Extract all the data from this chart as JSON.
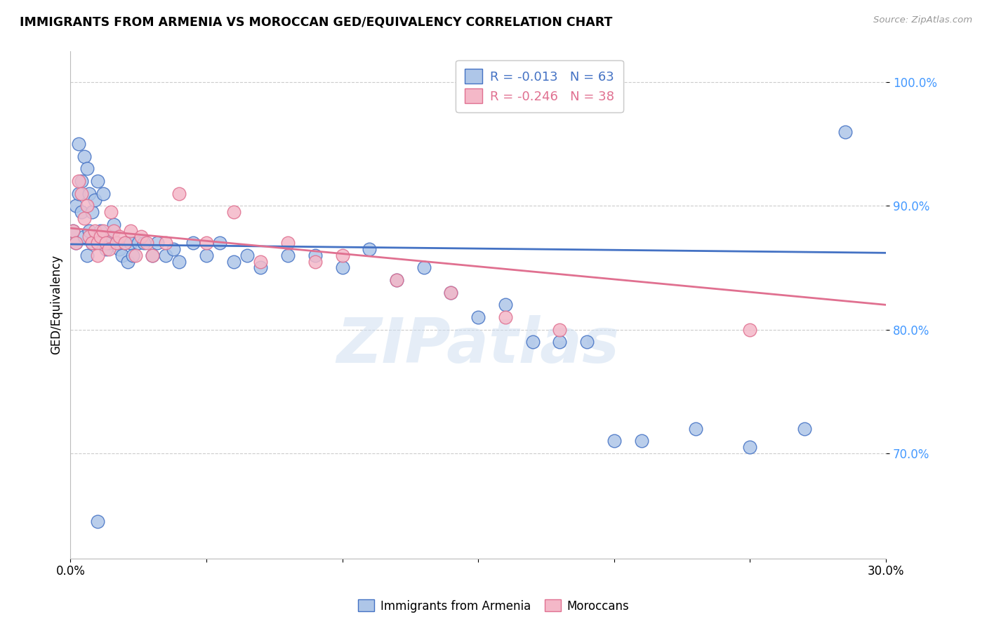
{
  "title": "IMMIGRANTS FROM ARMENIA VS MOROCCAN GED/EQUIVALENCY CORRELATION CHART",
  "source_text": "Source: ZipAtlas.com",
  "ylabel": "GED/Equivalency",
  "xmin": 0.0,
  "xmax": 0.3,
  "ymin": 0.615,
  "ymax": 1.025,
  "yticks": [
    0.7,
    0.8,
    0.9,
    1.0
  ],
  "ytick_labels": [
    "70.0%",
    "80.0%",
    "90.0%",
    "100.0%"
  ],
  "legend_r1": "-0.013",
  "legend_n1": "63",
  "legend_r2": "-0.246",
  "legend_n2": "38",
  "label1": "Immigrants from Armenia",
  "label2": "Moroccans",
  "color1": "#aec6e8",
  "color2": "#f4b8c8",
  "line_color1": "#4472c4",
  "line_color2": "#e07090",
  "ytick_color": "#4499ff",
  "watermark_text": "ZIPatlas",
  "armenia_x": [
    0.001,
    0.002,
    0.002,
    0.003,
    0.003,
    0.004,
    0.004,
    0.005,
    0.005,
    0.006,
    0.006,
    0.007,
    0.007,
    0.008,
    0.008,
    0.009,
    0.01,
    0.01,
    0.011,
    0.012,
    0.013,
    0.014,
    0.015,
    0.016,
    0.017,
    0.018,
    0.019,
    0.02,
    0.021,
    0.022,
    0.023,
    0.025,
    0.027,
    0.03,
    0.032,
    0.035,
    0.038,
    0.04,
    0.045,
    0.05,
    0.055,
    0.06,
    0.065,
    0.07,
    0.08,
    0.09,
    0.1,
    0.11,
    0.12,
    0.13,
    0.14,
    0.15,
    0.16,
    0.17,
    0.18,
    0.19,
    0.2,
    0.21,
    0.23,
    0.25,
    0.27,
    0.285,
    0.01
  ],
  "armenia_y": [
    0.88,
    0.9,
    0.87,
    0.95,
    0.91,
    0.92,
    0.895,
    0.94,
    0.875,
    0.93,
    0.86,
    0.91,
    0.88,
    0.895,
    0.87,
    0.905,
    0.92,
    0.87,
    0.88,
    0.91,
    0.865,
    0.87,
    0.875,
    0.885,
    0.87,
    0.865,
    0.86,
    0.87,
    0.855,
    0.87,
    0.86,
    0.87,
    0.87,
    0.86,
    0.87,
    0.86,
    0.865,
    0.855,
    0.87,
    0.86,
    0.87,
    0.855,
    0.86,
    0.85,
    0.86,
    0.86,
    0.85,
    0.865,
    0.84,
    0.85,
    0.83,
    0.81,
    0.82,
    0.79,
    0.79,
    0.79,
    0.71,
    0.71,
    0.72,
    0.705,
    0.72,
    0.96,
    0.645
  ],
  "morocco_x": [
    0.001,
    0.002,
    0.003,
    0.004,
    0.005,
    0.006,
    0.007,
    0.008,
    0.009,
    0.01,
    0.011,
    0.012,
    0.013,
    0.014,
    0.015,
    0.016,
    0.017,
    0.018,
    0.02,
    0.022,
    0.024,
    0.026,
    0.028,
    0.03,
    0.035,
    0.04,
    0.05,
    0.06,
    0.07,
    0.08,
    0.09,
    0.1,
    0.12,
    0.14,
    0.16,
    0.18,
    0.25,
    0.01
  ],
  "morocco_y": [
    0.88,
    0.87,
    0.92,
    0.91,
    0.89,
    0.9,
    0.875,
    0.87,
    0.88,
    0.87,
    0.875,
    0.88,
    0.87,
    0.865,
    0.895,
    0.88,
    0.87,
    0.875,
    0.87,
    0.88,
    0.86,
    0.875,
    0.87,
    0.86,
    0.87,
    0.91,
    0.87,
    0.895,
    0.855,
    0.87,
    0.855,
    0.86,
    0.84,
    0.83,
    0.81,
    0.8,
    0.8,
    0.86
  ],
  "blue_line_x": [
    0.0,
    0.3
  ],
  "blue_line_y": [
    0.869,
    0.862
  ],
  "pink_line_x": [
    0.0,
    0.3
  ],
  "pink_line_y": [
    0.882,
    0.82
  ]
}
